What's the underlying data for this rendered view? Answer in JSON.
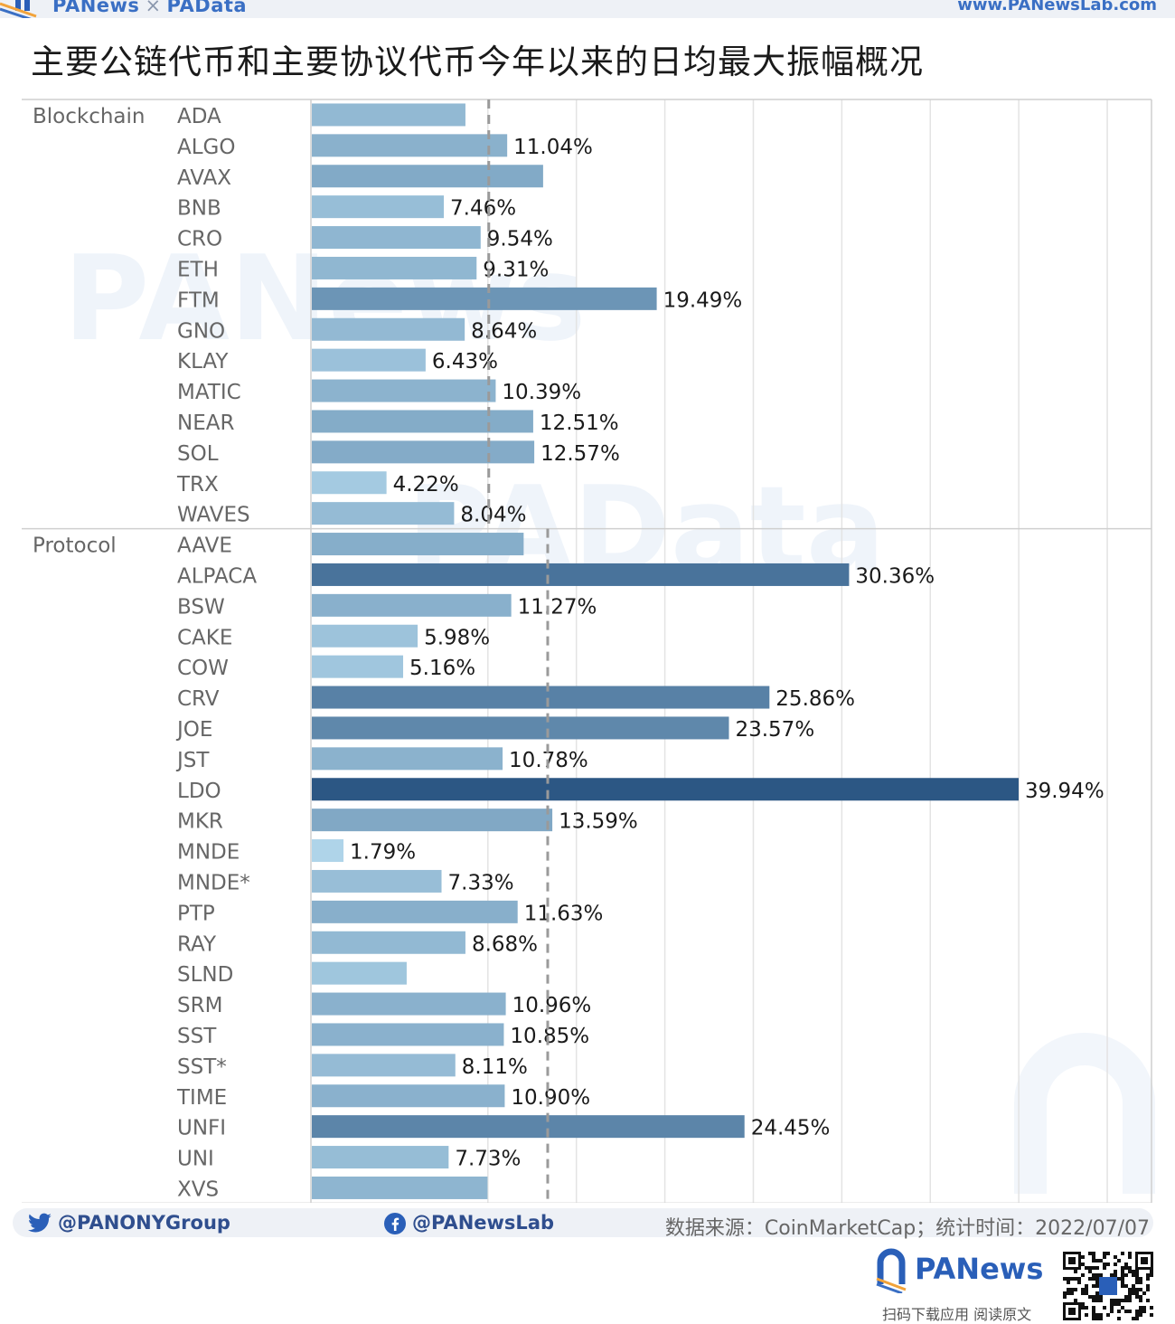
{
  "header": {
    "brand_left": "PANews",
    "brand_sep": "×",
    "brand_right": "PAData",
    "url": "www.PANewsLab.com"
  },
  "title": "主要公链代币和主要协议代币今年以来的日均最大振幅概况",
  "chart_data": {
    "type": "bar",
    "orientation": "horizontal",
    "title": "主要公链代币和主要协议代币今年以来的日均最大振幅概况",
    "xlabel": "",
    "ylabel": "",
    "xlim": [
      0,
      47.5
    ],
    "grid": true,
    "color_scale": [
      "#b9def1",
      "#2c5784"
    ],
    "groups": [
      {
        "name": "Blockchain",
        "reference_line": 10.05,
        "categories": [
          "ADA",
          "ALGO",
          "AVAX",
          "BNB",
          "CRO",
          "ETH",
          "FTM",
          "GNO",
          "KLAY",
          "MATIC",
          "NEAR",
          "SOL",
          "TRX",
          "WAVES"
        ],
        "values": [
          8.68,
          11.04,
          13.07,
          7.46,
          9.54,
          9.31,
          19.49,
          8.64,
          6.43,
          10.39,
          12.51,
          12.57,
          4.22,
          8.04
        ],
        "labels": [
          "",
          "11.04%",
          "",
          "7.46%",
          "9.54%",
          "9.31%",
          "19.49%",
          "8.64%",
          "6.43%",
          "10.39%",
          "12.51%",
          "12.57%",
          "4.22%",
          "8.04%"
        ]
      },
      {
        "name": "Protocol",
        "reference_line": 13.38,
        "categories": [
          "AAVE",
          "ALPACA",
          "BSW",
          "CAKE",
          "COW",
          "CRV",
          "JOE",
          "JST",
          "LDO",
          "MKR",
          "MNDE",
          "MNDE*",
          "PTP",
          "RAY",
          "SLND",
          "SRM",
          "SST",
          "SST*",
          "TIME",
          "UNFI",
          "UNI",
          "XVS"
        ],
        "values": [
          11.97,
          30.36,
          11.27,
          5.98,
          5.16,
          25.86,
          23.57,
          10.78,
          39.94,
          13.59,
          1.79,
          7.33,
          11.63,
          8.68,
          5.36,
          10.96,
          10.85,
          8.11,
          10.9,
          24.45,
          7.73,
          9.93
        ],
        "labels": [
          "",
          "30.36%",
          "11.27%",
          "5.98%",
          "5.16%",
          "25.86%",
          "23.57%",
          "10.78%",
          "39.94%",
          "13.59%",
          "1.79%",
          "7.33%",
          "11.63%",
          "8.68%",
          "",
          "10.96%",
          "10.85%",
          "8.11%",
          "10.90%",
          "24.45%",
          "7.73%",
          ""
        ]
      }
    ],
    "watermarks": [
      "PANews",
      "PAData"
    ]
  },
  "footer": {
    "twitter": "@PANONYGroup",
    "facebook": "@PANewsLab",
    "source": "数据来源：CoinMarketCap；统计时间：2022/07/07",
    "brand": "PANews",
    "caption": "扫码下载应用  阅读原文"
  },
  "colors": {
    "accent": "#3a6fc4",
    "grid": "#e3e3e3",
    "reference": "#9a9a9a"
  },
  "icons": [
    "twitter-icon",
    "facebook-icon",
    "panews-logo-icon",
    "qr-code"
  ]
}
